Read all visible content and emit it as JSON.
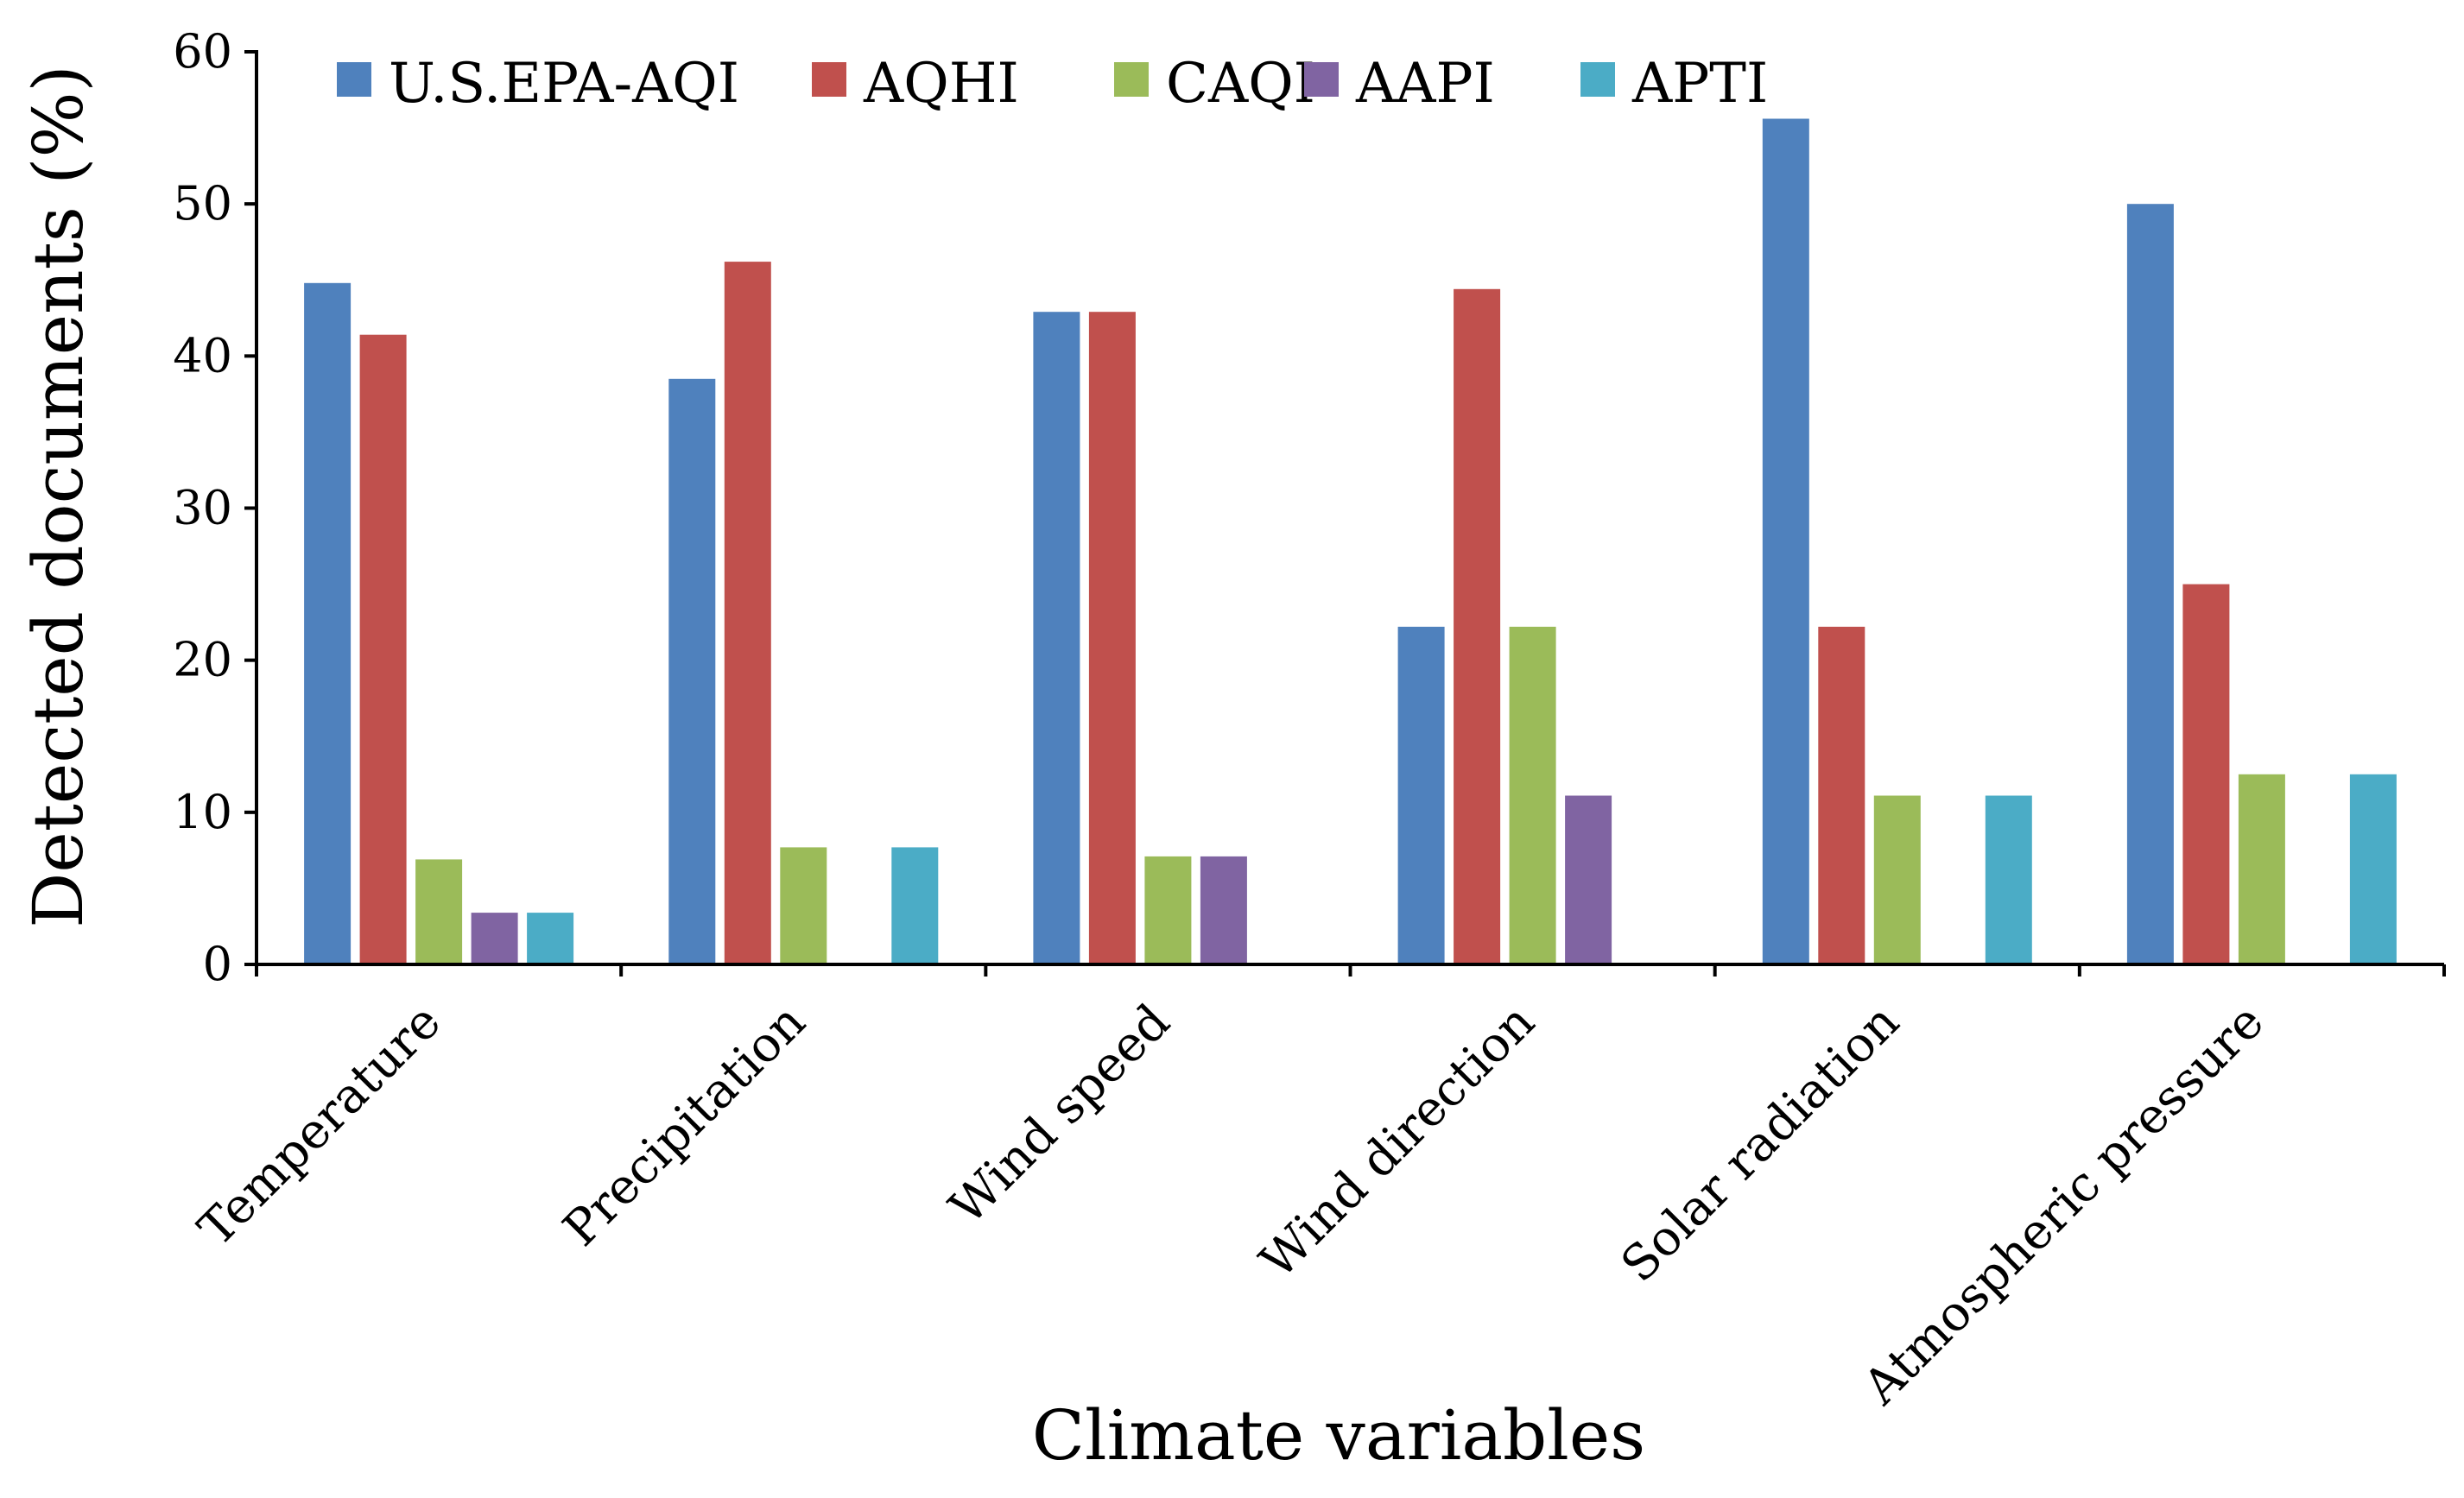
{
  "chart_data": {
    "type": "bar",
    "xlabel": "Climate variables",
    "ylabel": "Detected documents (%)",
    "ylim": [
      0,
      60
    ],
    "yticks": [
      0,
      10,
      20,
      30,
      40,
      50,
      60
    ],
    "grid": false,
    "legend_position": "top",
    "categories": [
      "Temperature",
      "Precipitation",
      "Wind speed",
      "Wind direction",
      "Solar radiation",
      "Atmospheric pressure"
    ],
    "series": [
      {
        "name": "U.S.EPA-AQI",
        "color": "#4F81BD",
        "values": [
          44.8,
          38.5,
          42.9,
          22.2,
          55.6,
          50.0
        ]
      },
      {
        "name": "AQHI",
        "color": "#C0504D",
        "values": [
          41.4,
          46.2,
          42.9,
          44.4,
          22.2,
          25.0
        ]
      },
      {
        "name": "CAQI",
        "color": "#9BBB59",
        "values": [
          6.9,
          7.7,
          7.1,
          22.2,
          11.1,
          12.5
        ]
      },
      {
        "name": "AAPI",
        "color": "#8064A2",
        "values": [
          3.4,
          0,
          7.1,
          11.1,
          0,
          0
        ]
      },
      {
        "name": "APTI",
        "color": "#4BACC6",
        "values": [
          3.4,
          7.7,
          0,
          0,
          11.1,
          12.5
        ]
      }
    ]
  }
}
